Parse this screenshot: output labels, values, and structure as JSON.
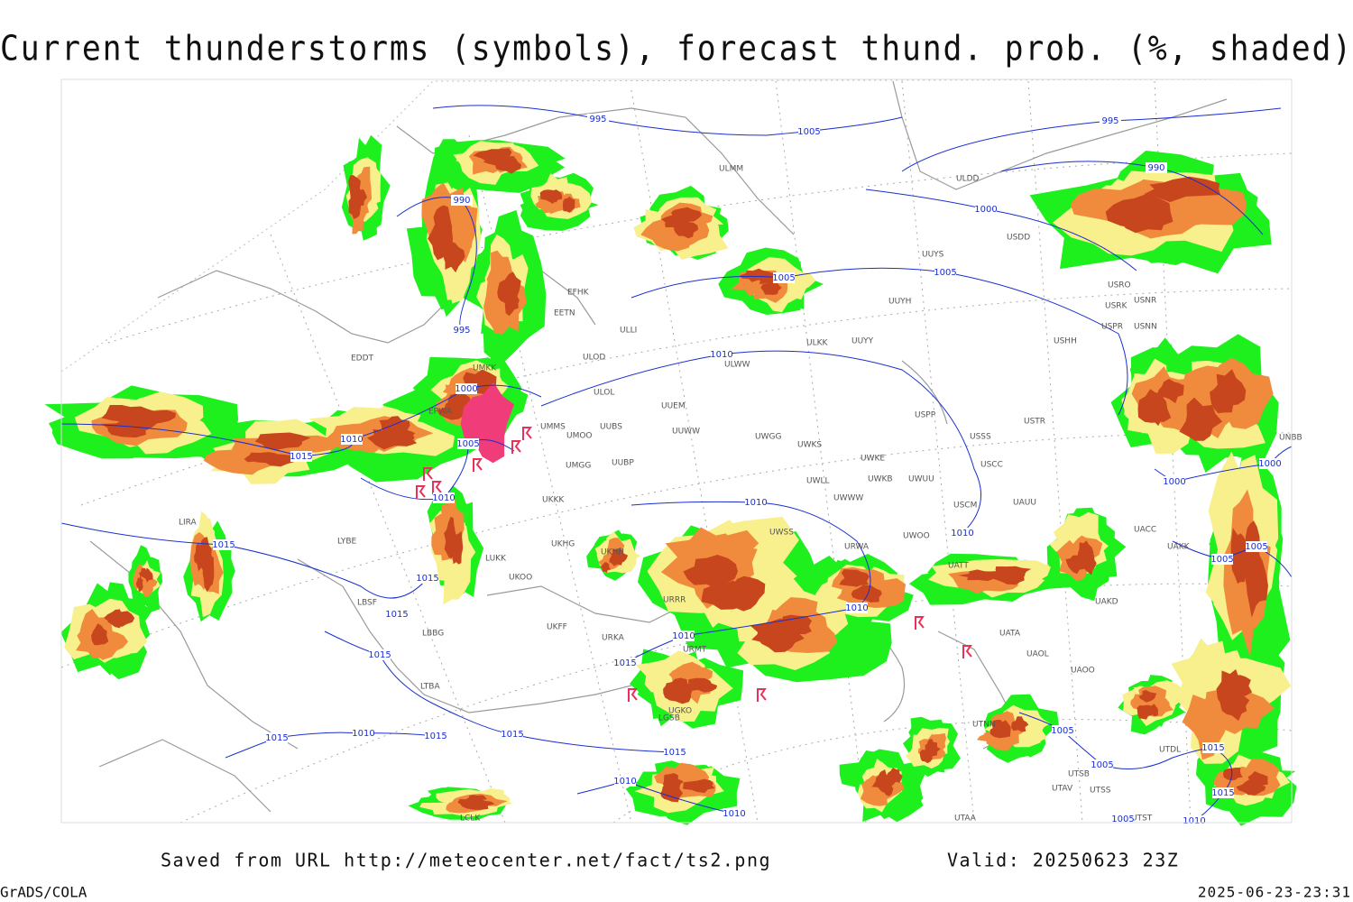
{
  "header": {
    "title": "Current thunderstorms (symbols), forecast thund. prob. (%, shaded)"
  },
  "footer": {
    "source": "Saved from URL http://meteocenter.net/fact/ts2.png",
    "valid": "Valid: 20250623 23Z",
    "software": "GrADS/COLA",
    "timestamp": "2025-06-23-23:31"
  },
  "stations": [
    "ULDD",
    "USDD",
    "UUYS",
    "UUYH",
    "UUYY",
    "ULKK",
    "USRO",
    "USRK",
    "USNR",
    "USPR",
    "USNN",
    "USHH",
    "ULMM",
    "ULLI",
    "ULOD",
    "ULOL",
    "ULWW",
    "UUEM",
    "UUWW",
    "UMMS",
    "UMOO",
    "UUBS",
    "UWGG",
    "UWKS",
    "UWKE",
    "UWKB",
    "UWUU",
    "UWLL",
    "USPP",
    "USSS",
    "USTR",
    "USCC",
    "USCM",
    "UAUU",
    "UUBP",
    "UMGG",
    "UKKK",
    "UKHH",
    "UKHG",
    "UWWW",
    "UWSS",
    "URWA",
    "UWOO",
    "UATT",
    "UACC",
    "UAKK",
    "UAKD",
    "UATA",
    "UAOL",
    "UAOO",
    "UTNN",
    "UTSB",
    "UTAV",
    "UTSS",
    "UTST",
    "UTAA",
    "UTDL",
    "UNBB",
    "LUKK",
    "UKOO",
    "UKFF",
    "LBBG",
    "LBSF",
    "LYBE",
    "LIRA",
    "LTBA",
    "URKA",
    "EDDT",
    "EPWA",
    "EFHK",
    "EETN",
    "UMKK",
    "LGSB",
    "UGKO",
    "LCLK",
    "URMT",
    "URRR"
  ],
  "isobar_labels": [
    "995",
    "995",
    "1005",
    "990",
    "990",
    "1000",
    "1005",
    "1005",
    "995",
    "1010",
    "1000",
    "1010",
    "1005",
    "1015",
    "1010",
    "1015",
    "1015",
    "1015",
    "1015",
    "1010",
    "1010",
    "1010",
    "1010",
    "1015",
    "1015",
    "1010",
    "1015",
    "1015",
    "1015",
    "1010",
    "1010",
    "1005",
    "1005",
    "1015",
    "1015",
    "1010",
    "1000",
    "1000",
    "1005",
    "1005",
    "1005"
  ]
}
